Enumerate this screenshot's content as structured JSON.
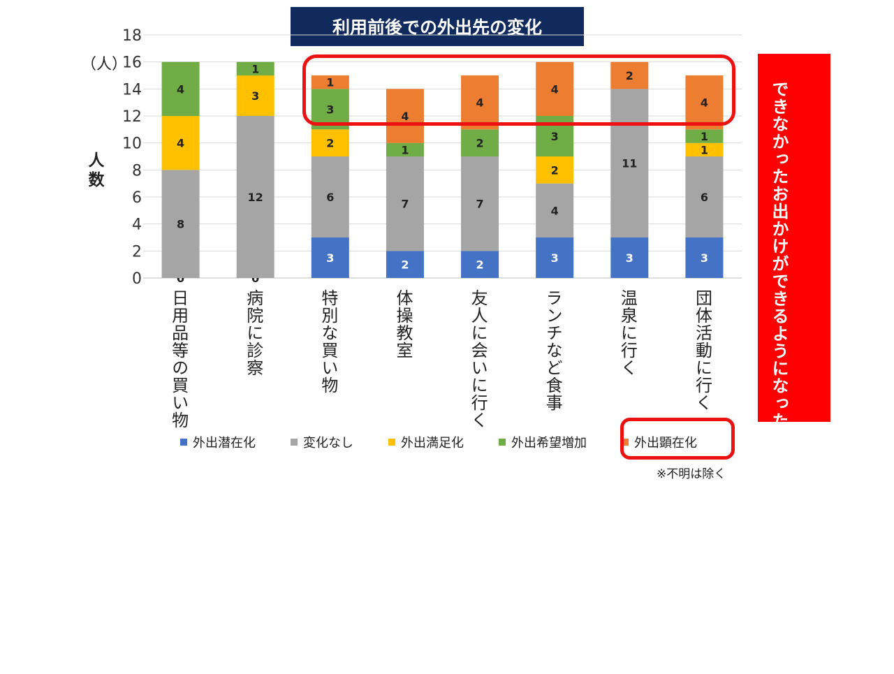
{
  "chart_data": {
    "type": "bar",
    "stacked": true,
    "title": "利用前後での外出先の変化",
    "unit_label": "（人）",
    "ylabel": "人数",
    "ylim": [
      0,
      18
    ],
    "yticks": [
      0,
      2,
      4,
      6,
      8,
      10,
      12,
      14,
      16,
      18
    ],
    "grid": true,
    "legend_position": "bottom",
    "categories": [
      "日用品等の買い物",
      "病院に診察",
      "特別な買い物",
      "体操教室",
      "友人に会いに行く",
      "ランチなど食事",
      "温泉に行く",
      "団体活動に行く"
    ],
    "series": [
      {
        "name": "外出潜在化",
        "color": "#4472c4",
        "values": [
          0,
          0,
          3,
          2,
          2,
          3,
          3,
          3
        ]
      },
      {
        "name": "変化なし",
        "color": "#a5a5a5",
        "values": [
          8,
          12,
          6,
          7,
          7,
          4,
          11,
          6
        ]
      },
      {
        "name": "外出満足化",
        "color": "#ffc000",
        "values": [
          4,
          3,
          2,
          0,
          0,
          2,
          0,
          1
        ]
      },
      {
        "name": "外出希望増加",
        "color": "#70ad47",
        "values": [
          4,
          1,
          3,
          1,
          2,
          3,
          0,
          1
        ]
      },
      {
        "name": "外出顕在化",
        "color": "#ed7d31",
        "values": [
          0,
          0,
          1,
          4,
          4,
          4,
          2,
          4
        ]
      }
    ]
  },
  "annotations": {
    "callout": "できなかったお出かけができるようになった、お出かけの喜びを思い出した",
    "note": "※不明は除く"
  }
}
